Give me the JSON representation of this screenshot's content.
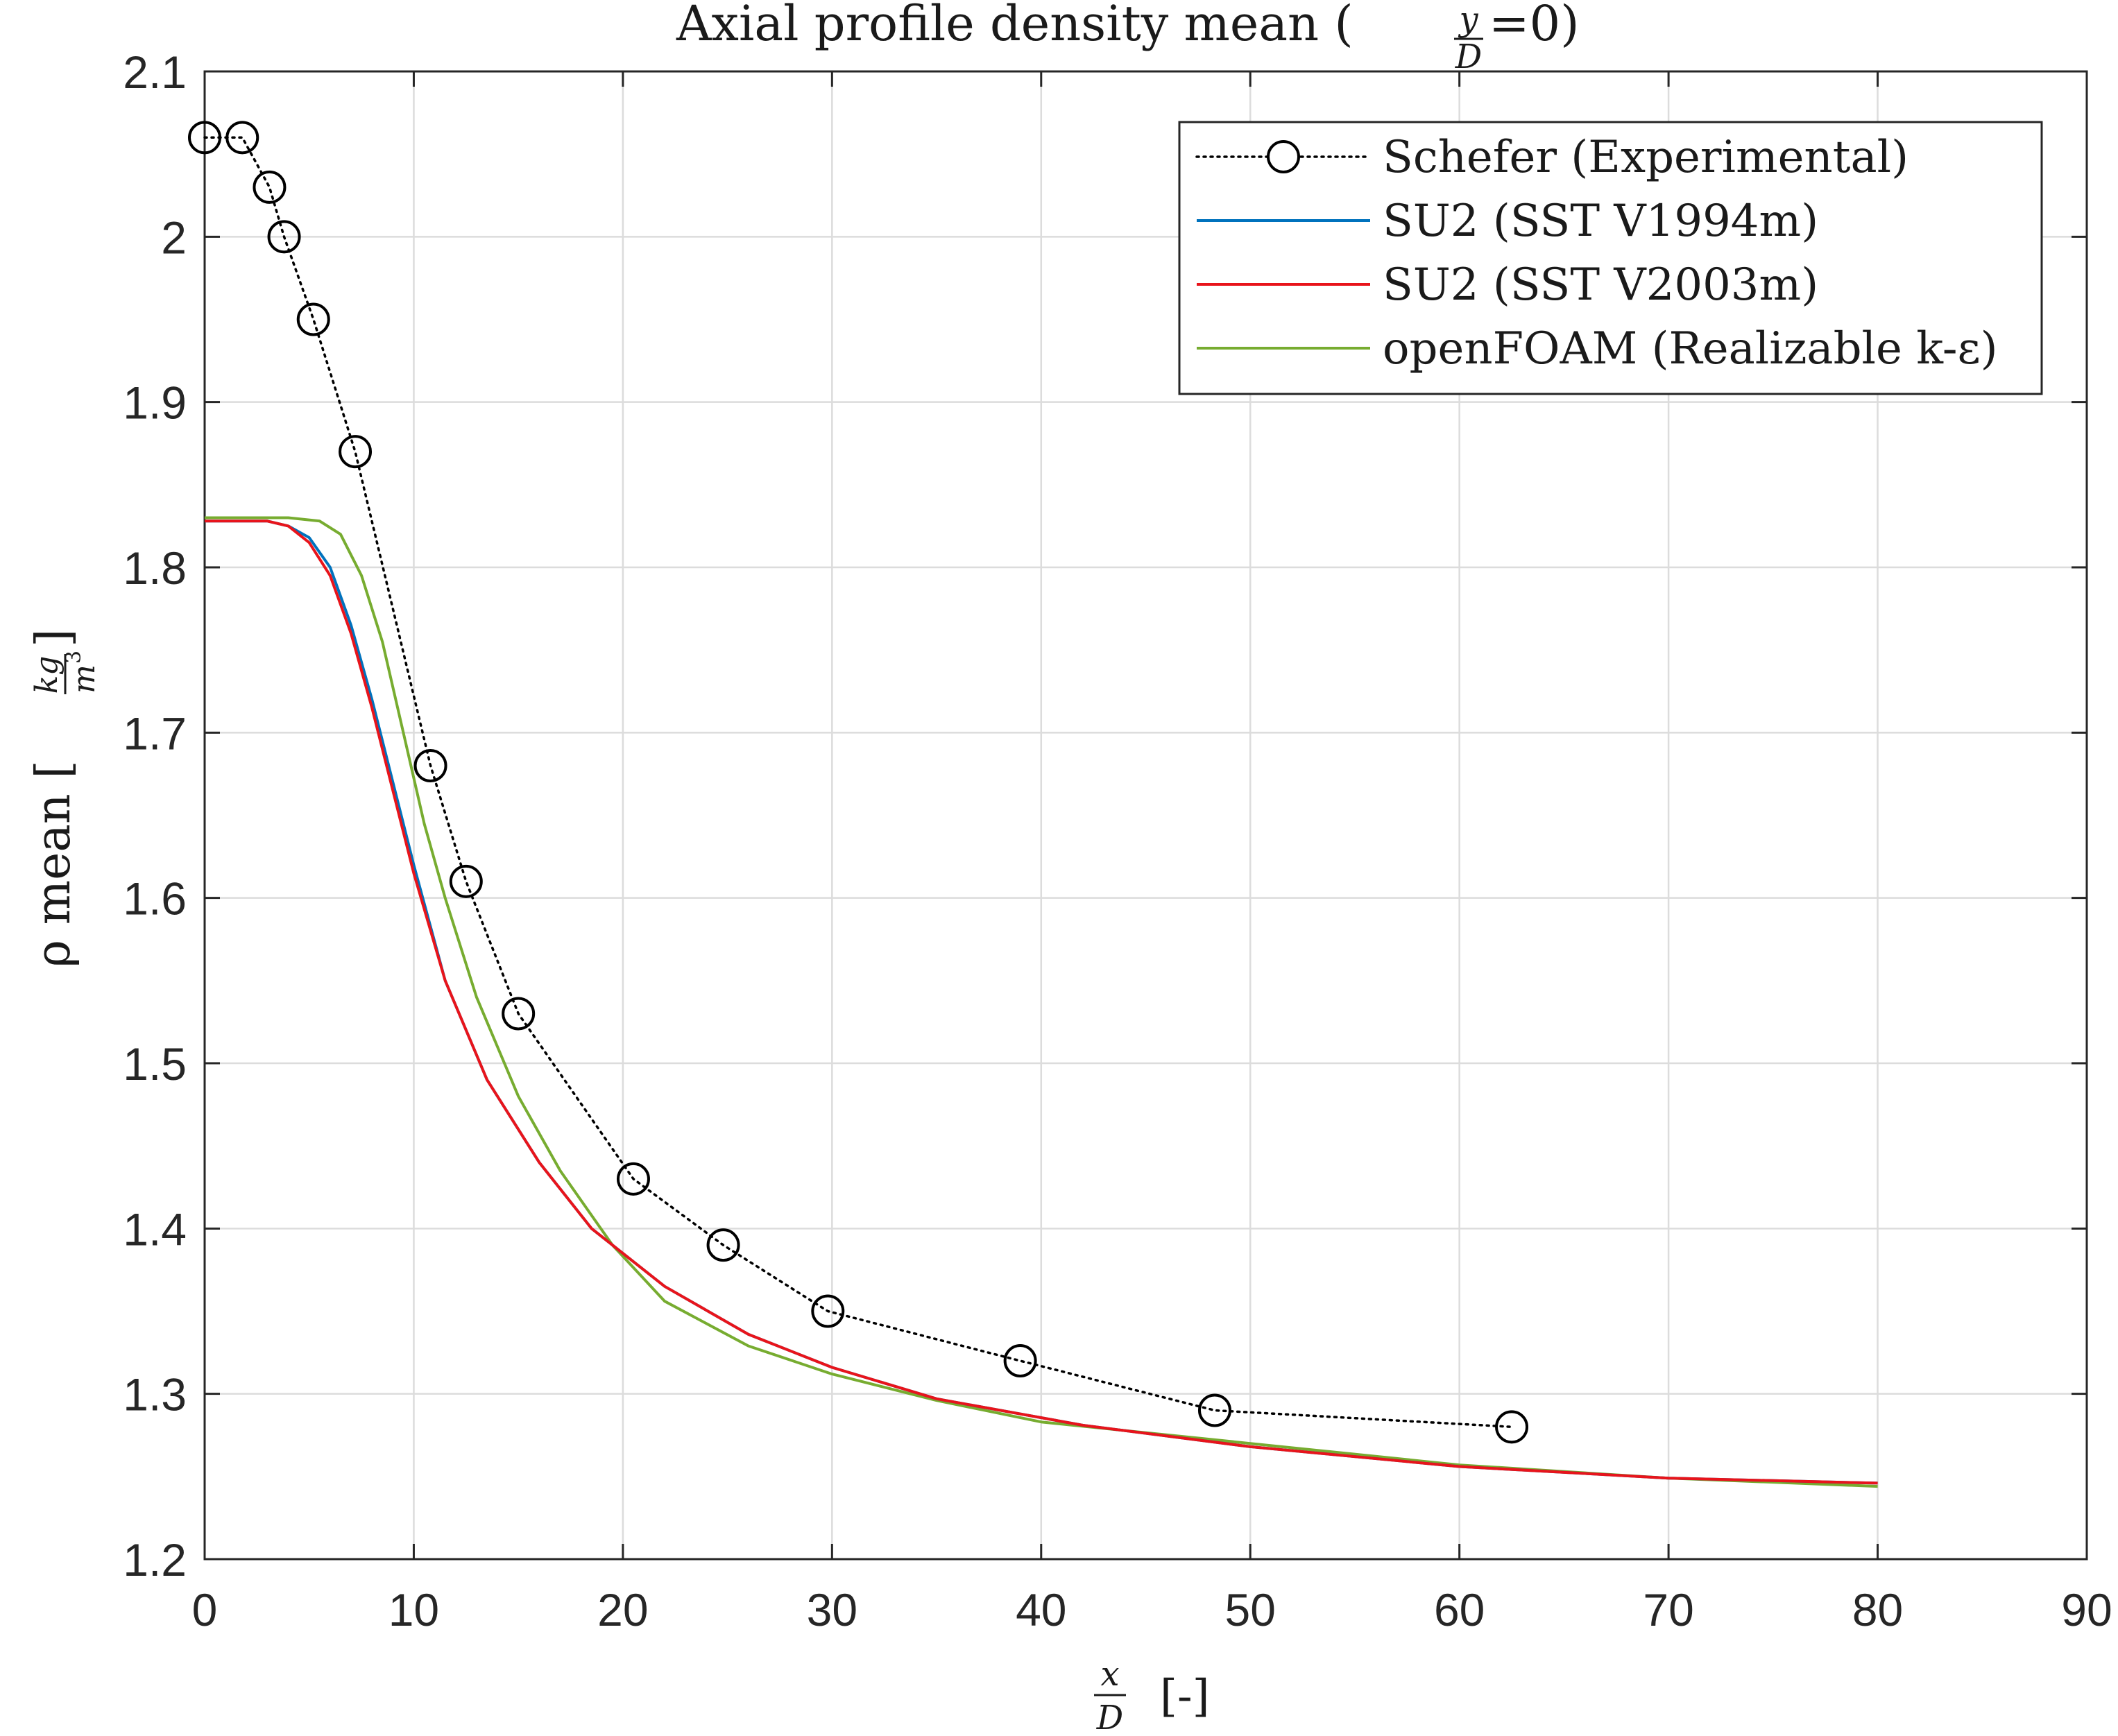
{
  "chart_data": {
    "type": "line",
    "title": {
      "prefix": "Axial profile density mean (",
      "frac_num": "y",
      "frac_den": "D",
      "suffix": "=0)"
    },
    "xlabel": {
      "frac_num": "x",
      "frac_den": "D",
      "unit": "[-]"
    },
    "ylabel": {
      "prefix": "ρ mean [",
      "frac_num": "kg",
      "frac_den": "m",
      "frac_den_sup": "3",
      "suffix": "]"
    },
    "xlim": [
      0,
      90
    ],
    "ylim": [
      1.2,
      2.1
    ],
    "xticks": [
      0,
      10,
      20,
      30,
      40,
      50,
      60,
      70,
      80,
      90
    ],
    "yticks": [
      1.2,
      1.3,
      1.4,
      1.5,
      1.6,
      1.7,
      1.8,
      1.9,
      2.0,
      2.1
    ],
    "xtick_labels": [
      "0",
      "10",
      "20",
      "30",
      "40",
      "50",
      "60",
      "70",
      "80",
      "90"
    ],
    "ytick_labels": [
      "1.2",
      "1.3",
      "1.4",
      "1.5",
      "1.6",
      "1.7",
      "1.8",
      "1.9",
      "2",
      "2.1"
    ],
    "grid": true,
    "legend_position": "top-right",
    "series": [
      {
        "name": "Schefer (Experimental)",
        "color": "#000000",
        "style": "dotted-circle-markers",
        "x": [
          0,
          1.8,
          3.1,
          3.8,
          5.2,
          7.2,
          10.8,
          12.5,
          15.0,
          20.5,
          24.8,
          29.8,
          39.0,
          48.3,
          62.5
        ],
        "y": [
          2.06,
          2.06,
          2.03,
          2.0,
          1.95,
          1.87,
          1.68,
          1.61,
          1.53,
          1.43,
          1.39,
          1.35,
          1.32,
          1.29,
          1.28
        ]
      },
      {
        "name": "SU2 (SST V1994m)",
        "color": "#0072BD",
        "style": "solid",
        "x": [
          0,
          2,
          3,
          4,
          5,
          6,
          7,
          8,
          9,
          10,
          11.5,
          13.5,
          16,
          18.5,
          22,
          26,
          30,
          35,
          42,
          50,
          60,
          70,
          80
        ],
        "y": [
          1.828,
          1.828,
          1.828,
          1.825,
          1.818,
          1.8,
          1.765,
          1.72,
          1.67,
          1.62,
          1.55,
          1.49,
          1.44,
          1.4,
          1.365,
          1.336,
          1.316,
          1.297,
          1.281,
          1.268,
          1.256,
          1.249,
          1.246
        ]
      },
      {
        "name": "SU2 (SST V2003m)",
        "color": "#E8141B",
        "style": "solid",
        "x": [
          0,
          2,
          3,
          4,
          5,
          6,
          7,
          8,
          9,
          10,
          11.5,
          13.5,
          16,
          18.5,
          22,
          26,
          30,
          35,
          42,
          50,
          60,
          70,
          80
        ],
        "y": [
          1.828,
          1.828,
          1.828,
          1.825,
          1.815,
          1.795,
          1.76,
          1.715,
          1.665,
          1.615,
          1.55,
          1.49,
          1.44,
          1.4,
          1.365,
          1.336,
          1.316,
          1.297,
          1.281,
          1.268,
          1.256,
          1.249,
          1.246
        ]
      },
      {
        "name": "openFOAM (Realizable k-ε)",
        "color": "#77AC30",
        "style": "solid",
        "x": [
          0,
          2,
          4,
          5.5,
          6.5,
          7.5,
          8.5,
          9.5,
          10.5,
          11.5,
          13,
          15,
          17,
          19.5,
          22,
          26,
          30,
          35,
          40,
          50,
          60,
          70,
          80
        ],
        "y": [
          1.83,
          1.83,
          1.83,
          1.828,
          1.82,
          1.795,
          1.755,
          1.7,
          1.645,
          1.6,
          1.54,
          1.48,
          1.435,
          1.39,
          1.356,
          1.329,
          1.312,
          1.296,
          1.283,
          1.27,
          1.257,
          1.249,
          1.244
        ]
      }
    ]
  }
}
